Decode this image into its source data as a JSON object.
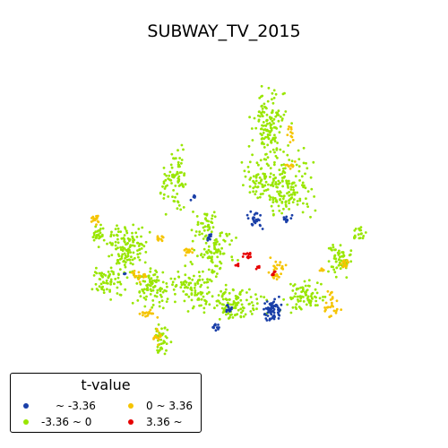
{
  "chart_data": {
    "type": "scatter",
    "title": "SUBWAY_TV_2015",
    "legend": {
      "title": "t-value",
      "placement": "bottom-left",
      "entries": [
        {
          "label": "~ -3.36",
          "color": "#1a3fa8"
        },
        {
          "label": "-3.36 ~ 0",
          "color": "#99e600"
        },
        {
          "label": "0 ~ 3.36",
          "color": "#f5c400"
        },
        {
          "label": "3.36 ~",
          "color": "#e60000"
        }
      ]
    },
    "axes_visible": false,
    "grid": false,
    "series": [
      {
        "name": "~ -3.36",
        "color": "#1a3fa8",
        "points": "approximate point clusters of the map"
      },
      {
        "name": "-3.36 ~ 0",
        "color": "#99e600",
        "points": "approximate point clusters of the map"
      },
      {
        "name": "0 ~ 3.36",
        "color": "#f5c400",
        "points": "approximate point clusters of the map"
      },
      {
        "name": "3.36 ~",
        "color": "#e60000",
        "points": "approximate point clusters of the map"
      }
    ]
  }
}
